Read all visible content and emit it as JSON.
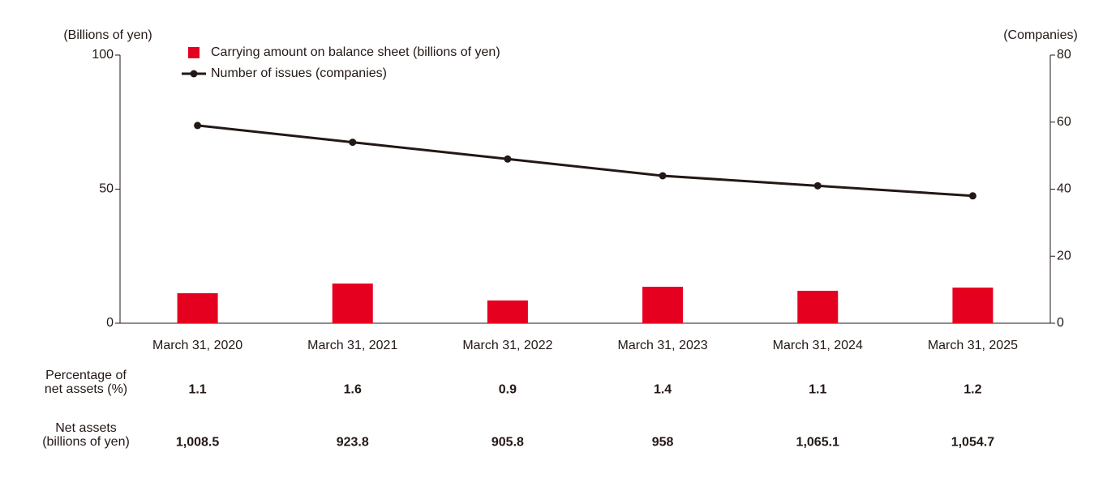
{
  "chart_data": {
    "type": "bar_line",
    "y_label": "(Billions of yen)",
    "y2_label": "(Companies)",
    "categories": [
      "March 31, 2020",
      "March 31, 2021",
      "March 31, 2022",
      "March 31, 2023",
      "March 31, 2024",
      "March 31, 2025"
    ],
    "series": [
      {
        "name": "Carrying amount on balance sheet (billions of yen)",
        "type": "bar",
        "color": "#e60020",
        "values": [
          11.2,
          14.8,
          8.5,
          13.6,
          12.1,
          13.3
        ]
      },
      {
        "name": "Number of issues (companies)",
        "type": "line",
        "axis": "y2",
        "color": "#231815",
        "values": [
          59,
          54,
          49,
          44,
          41,
          38
        ]
      }
    ],
    "ylim": [
      0,
      100
    ],
    "yticks": [
      0,
      50,
      100
    ],
    "y2lim": [
      0,
      80
    ],
    "y2ticks": [
      0,
      20,
      40,
      60,
      80
    ],
    "grid": false,
    "legend": "top-left",
    "table": {
      "rows": [
        {
          "label": "Percentage of\nnet assets (%)",
          "values": [
            "1.1",
            "1.6",
            "0.9",
            "1.4",
            "1.1",
            "1.2"
          ]
        },
        {
          "label": "Net assets\n(billions of yen)",
          "values": [
            "1,008.5",
            "923.8",
            "905.8",
            "958",
            "1,065.1",
            "1,054.7"
          ]
        }
      ]
    }
  }
}
